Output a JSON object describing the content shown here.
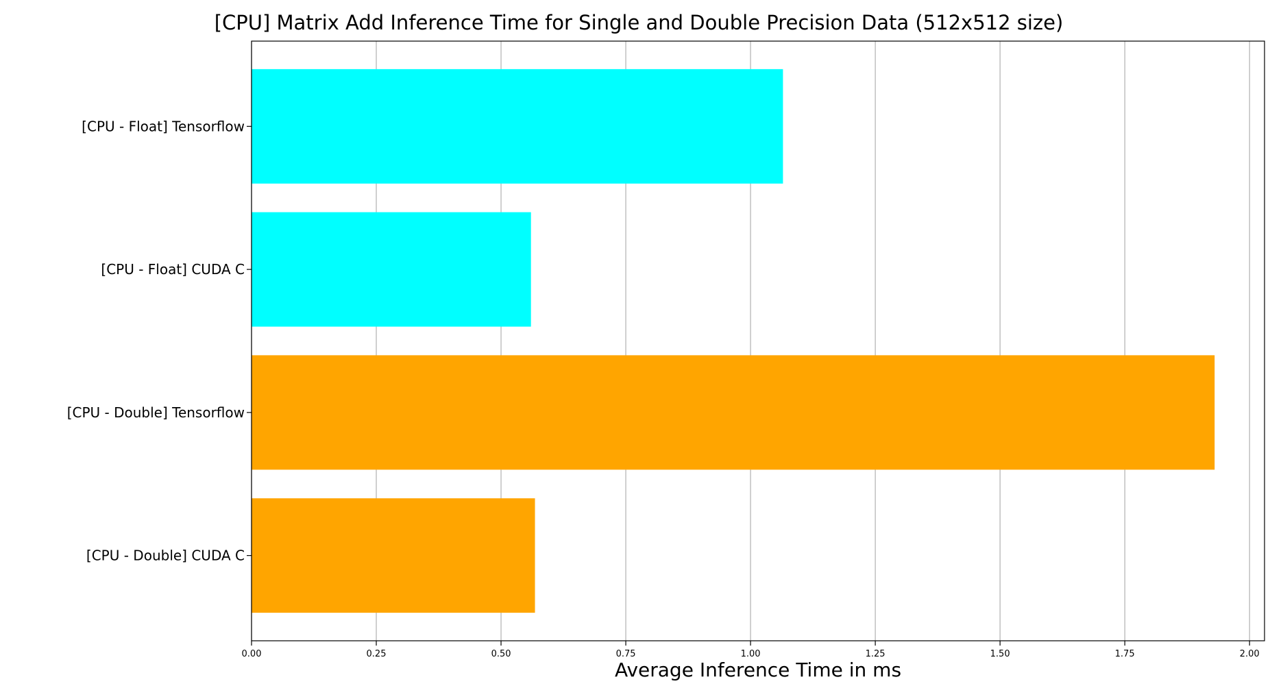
{
  "chart_data": {
    "type": "bar",
    "orientation": "horizontal",
    "title": "[CPU] Matrix Add Inference Time for Single and Double Precision Data (512x512 size)",
    "xlabel": "Average Inference Time in ms",
    "ylabel": "",
    "xlim": [
      0,
      2.03
    ],
    "xticks": [
      "0.00",
      "0.25",
      "0.50",
      "0.75",
      "1.00",
      "1.25",
      "1.50",
      "1.75",
      "2.00"
    ],
    "grid": "x-axis vertical lines",
    "legend": "none",
    "categories": [
      "[CPU - Float] Tensorflow",
      "[CPU - Float] CUDA C",
      "[CPU - Double] Tensorflow",
      "[CPU - Double] CUDA C"
    ],
    "values": [
      1.065,
      0.56,
      1.93,
      0.568
    ],
    "colors": [
      "#00ffff",
      "#00ffff",
      "#ffa500",
      "#ffa500"
    ]
  }
}
